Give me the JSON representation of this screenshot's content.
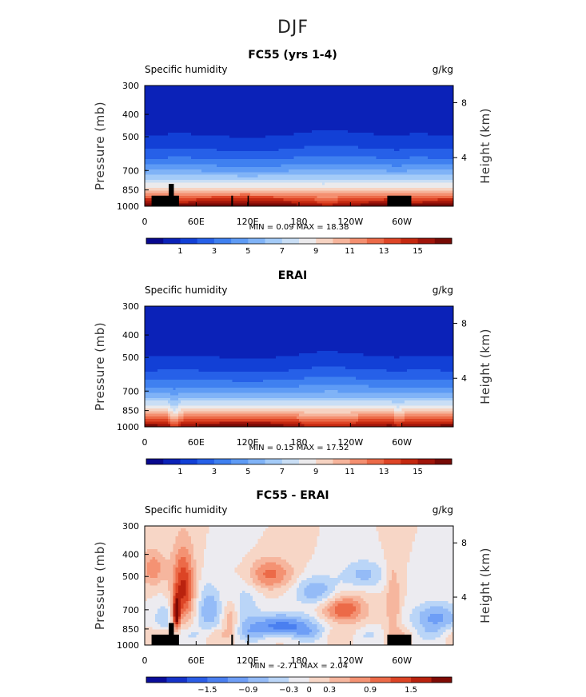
{
  "figure": {
    "title": "DJF"
  },
  "chart_data": [
    {
      "type": "heatmap",
      "title": "FC55 (yrs 1-4)",
      "left_label": "Specific humidity",
      "right_label": "g/kg",
      "ylabel": "Pressure (mb)",
      "ylabel_right": "Height (km)",
      "yticks": [
        "300",
        "400",
        "500",
        "700",
        "850",
        "1000"
      ],
      "ytick_values": [
        300,
        400,
        500,
        700,
        850,
        1000
      ],
      "yticks_right": [
        "8",
        "4"
      ],
      "xticks": [
        "0",
        "60E",
        "120E",
        "180",
        "120W",
        "60W"
      ],
      "xtick_values": [
        0,
        60,
        120,
        180,
        240,
        300
      ],
      "xlim": [
        0,
        360
      ],
      "ylim": [
        1000,
        300
      ],
      "stats": "MIN =    0.09   MAX =   18.38",
      "colorbar_labels": [
        "1",
        "3",
        "5",
        "7",
        "9",
        "11",
        "13",
        "15"
      ],
      "colorbar_levels": [
        0,
        1,
        2,
        3,
        4,
        5,
        6,
        7,
        8,
        9,
        10,
        11,
        12,
        13,
        14,
        15,
        16,
        17
      ],
      "topography": true,
      "field": "fc"
    },
    {
      "type": "heatmap",
      "title": "ERAI",
      "left_label": "Specific humidity",
      "right_label": "g/kg",
      "ylabel": "Pressure (mb)",
      "ylabel_right": "Height (km)",
      "yticks": [
        "300",
        "400",
        "500",
        "700",
        "850",
        "1000"
      ],
      "ytick_values": [
        300,
        400,
        500,
        700,
        850,
        1000
      ],
      "yticks_right": [
        "8",
        "4"
      ],
      "xticks": [
        "0",
        "60E",
        "120E",
        "180",
        "120W",
        "60W"
      ],
      "xtick_values": [
        0,
        60,
        120,
        180,
        240,
        300
      ],
      "xlim": [
        0,
        360
      ],
      "ylim": [
        1000,
        300
      ],
      "stats": "MIN =    0.15   MAX =   17.52",
      "colorbar_labels": [
        "1",
        "3",
        "5",
        "7",
        "9",
        "11",
        "13",
        "15"
      ],
      "colorbar_levels": [
        0,
        1,
        2,
        3,
        4,
        5,
        6,
        7,
        8,
        9,
        10,
        11,
        12,
        13,
        14,
        15,
        16,
        17
      ],
      "topography": false,
      "field": "erai"
    },
    {
      "type": "heatmap",
      "title": "FC55 - ERAI",
      "left_label": "Specific humidity",
      "right_label": "g/kg",
      "ylabel": "Pressure (mb)",
      "ylabel_right": "Height (km)",
      "yticks": [
        "300",
        "400",
        "500",
        "700",
        "850",
        "1000"
      ],
      "ytick_values": [
        300,
        400,
        500,
        700,
        850,
        1000
      ],
      "yticks_right": [
        "8",
        "4"
      ],
      "xticks": [
        "0",
        "60E",
        "120E",
        "180",
        "120W",
        "60W"
      ],
      "xtick_values": [
        0,
        60,
        120,
        180,
        240,
        300
      ],
      "xlim": [
        0,
        360
      ],
      "ylim": [
        1000,
        300
      ],
      "stats": "MIN =   -2.71   MAX =    2.04",
      "colorbar_labels": [
        "-1.5",
        "-0.9",
        "-0.3",
        "0",
        "0.3",
        "0.9",
        "1.5"
      ],
      "colorbar_levels": [
        -2.1,
        -1.8,
        -1.5,
        -1.2,
        -0.9,
        -0.6,
        -0.3,
        0,
        0.3,
        0.6,
        0.9,
        1.2,
        1.5,
        1.8,
        2.1
      ],
      "topography": true,
      "field": "diff"
    }
  ],
  "colors": {
    "full_palette": [
      "#08088e",
      "#0b22b8",
      "#1240d6",
      "#2660e8",
      "#3f80f0",
      "#5e9bf5",
      "#80b3f7",
      "#a4cbf8",
      "#c9def5",
      "#ebeaec",
      "#f6d3c2",
      "#f6b49b",
      "#f48f70",
      "#ec6a48",
      "#de4526",
      "#c4280f",
      "#a0150a",
      "#770a05"
    ],
    "diff_palette": [
      "#0a0d9a",
      "#1533c9",
      "#2b5de6",
      "#4a7ff0",
      "#6e9ef6",
      "#94bbf7",
      "#bad5f7",
      "#ecebf0",
      "#f7d6c6",
      "#f6b69e",
      "#f49273",
      "#ec6a48",
      "#dc4425",
      "#b9220e",
      "#7f0b05"
    ],
    "topography": "#000000"
  }
}
